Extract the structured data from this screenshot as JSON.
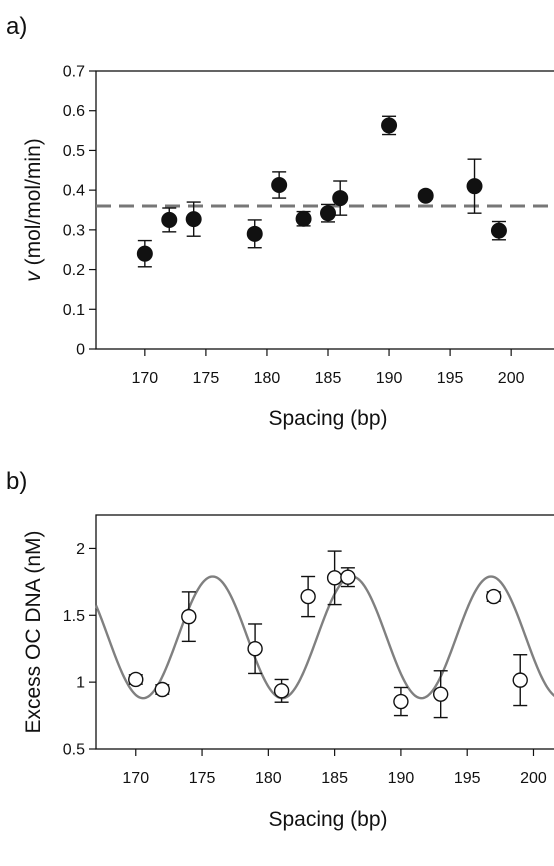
{
  "panel_a_label": "a)",
  "panel_b_label": "b)",
  "chart_data": [
    {
      "type": "scatter",
      "title": "",
      "xlabel": "Spacing (bp)",
      "ylabel_symbol": "v",
      "ylabel_units": "(mol/mol/min)",
      "xlim": [
        166,
        204
      ],
      "ylim": [
        0,
        0.7
      ],
      "x_ticks": [
        170,
        175,
        180,
        185,
        190,
        195,
        200
      ],
      "y_ticks": [
        {
          "value": 0,
          "label": "0"
        },
        {
          "value": 0.1,
          "label": "0.1"
        },
        {
          "value": 0.2,
          "label": "0.2"
        },
        {
          "value": 0.3,
          "label": "0.3"
        },
        {
          "value": 0.4,
          "label": "0.4"
        },
        {
          "value": 0.5,
          "label": "0.5"
        },
        {
          "value": 0.6,
          "label": "0.6"
        },
        {
          "value": 0.7,
          "label": "0.7"
        }
      ],
      "marker": "filled-circle",
      "marker_color": "#111111",
      "reference_line": {
        "y": 0.36,
        "style": "dashed",
        "color": "#777777"
      },
      "grid": false,
      "points": [
        {
          "x": 170,
          "y": 0.24,
          "err": 0.033
        },
        {
          "x": 172,
          "y": 0.325,
          "err": 0.03
        },
        {
          "x": 174,
          "y": 0.327,
          "err": 0.043
        },
        {
          "x": 179,
          "y": 0.29,
          "err": 0.035
        },
        {
          "x": 181,
          "y": 0.413,
          "err": 0.033
        },
        {
          "x": 183,
          "y": 0.328,
          "err": 0.018
        },
        {
          "x": 185,
          "y": 0.342,
          "err": 0.022
        },
        {
          "x": 186,
          "y": 0.38,
          "err": 0.043
        },
        {
          "x": 190,
          "y": 0.563,
          "err": 0.023
        },
        {
          "x": 193,
          "y": 0.386,
          "err": 0.008
        },
        {
          "x": 197,
          "y": 0.41,
          "err": 0.068
        },
        {
          "x": 199,
          "y": 0.298,
          "err": 0.023
        }
      ]
    },
    {
      "type": "scatter",
      "title": "",
      "xlabel": "Spacing (bp)",
      "ylabel": "Excess OC DNA (nM)",
      "xlim": [
        167,
        202
      ],
      "ylim": [
        0.5,
        2.25
      ],
      "x_ticks": [
        170,
        175,
        180,
        185,
        190,
        195,
        200
      ],
      "y_ticks": [
        {
          "value": 0.5,
          "label": "0.5"
        },
        {
          "value": 1,
          "label": "1"
        },
        {
          "value": 1.5,
          "label": "1.5"
        },
        {
          "value": 2,
          "label": "2"
        }
      ],
      "marker": "open-circle",
      "marker_color": "#111111",
      "grid": false,
      "fit_curve": {
        "type": "sinusoid",
        "mean": 1.335,
        "amplitude": 0.455,
        "period_bp": 10.5,
        "peak_at_bp": 175.8,
        "color": "#808080"
      },
      "points": [
        {
          "x": 170,
          "y": 1.02,
          "err": 0.035
        },
        {
          "x": 172,
          "y": 0.945,
          "err": 0.035
        },
        {
          "x": 174,
          "y": 1.49,
          "err": 0.185
        },
        {
          "x": 179,
          "y": 1.25,
          "err": 0.185
        },
        {
          "x": 181,
          "y": 0.935,
          "err": 0.085
        },
        {
          "x": 183,
          "y": 1.64,
          "err": 0.15
        },
        {
          "x": 185,
          "y": 1.78,
          "err": 0.2
        },
        {
          "x": 186,
          "y": 1.785,
          "err": 0.07
        },
        {
          "x": 190,
          "y": 0.855,
          "err": 0.105
        },
        {
          "x": 193,
          "y": 0.91,
          "err": 0.175
        },
        {
          "x": 197,
          "y": 1.64,
          "err": 0.035
        },
        {
          "x": 199,
          "y": 1.015,
          "err": 0.19
        }
      ]
    }
  ]
}
